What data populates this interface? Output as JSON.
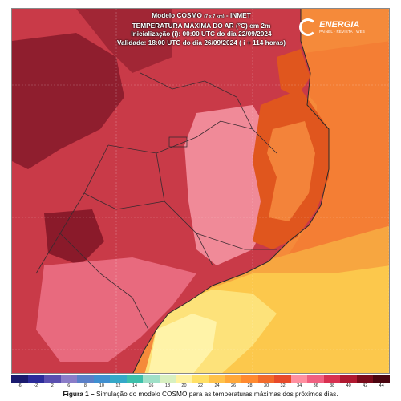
{
  "header": {
    "line1": "Modelo COSMO",
    "line1_res": "(7 x 7 km)",
    "line1_src": " - INMET",
    "line2": "TEMPERATURA MÁXIMA DO AR (°C) em 2m",
    "line3": "Inicialização (i): 00:00 UTC do dia 22/09/2024",
    "line4": "Validade: 18:00 UTC do dia 26/09/2024 ( i + 114 horas)"
  },
  "logo": {
    "name": "ENERGIA",
    "sub": "PAINEL · REVISTA · WEB",
    "icon": "energia-logo-icon"
  },
  "colorbar": {
    "ticks": [
      "-6",
      "-2",
      "2",
      "6",
      "8",
      "10",
      "12",
      "14",
      "16",
      "18",
      "20",
      "22",
      "24",
      "26",
      "28",
      "30",
      "32",
      "34",
      "36",
      "38",
      "40",
      "42",
      "44"
    ],
    "colors": [
      "#1a1a6e",
      "#2b2b9a",
      "#5a4fb0",
      "#8a7cc8",
      "#5a7fc8",
      "#3f8fd0",
      "#35a8c8",
      "#3cbfaa",
      "#9fe0c8",
      "#d8f0c0",
      "#fff2a0",
      "#ffe066",
      "#ffc24a",
      "#ffa83a",
      "#ff8a30",
      "#f26a2a",
      "#e84a2a",
      "#ff8fa0",
      "#f06080",
      "#d83050",
      "#b01830",
      "#7a0a1a",
      "#4a0510"
    ]
  },
  "caption": {
    "label": "Figura 1 –",
    "text": " Simulação do modelo COSMO para as temperaturas máximas dos próximos dias."
  }
}
